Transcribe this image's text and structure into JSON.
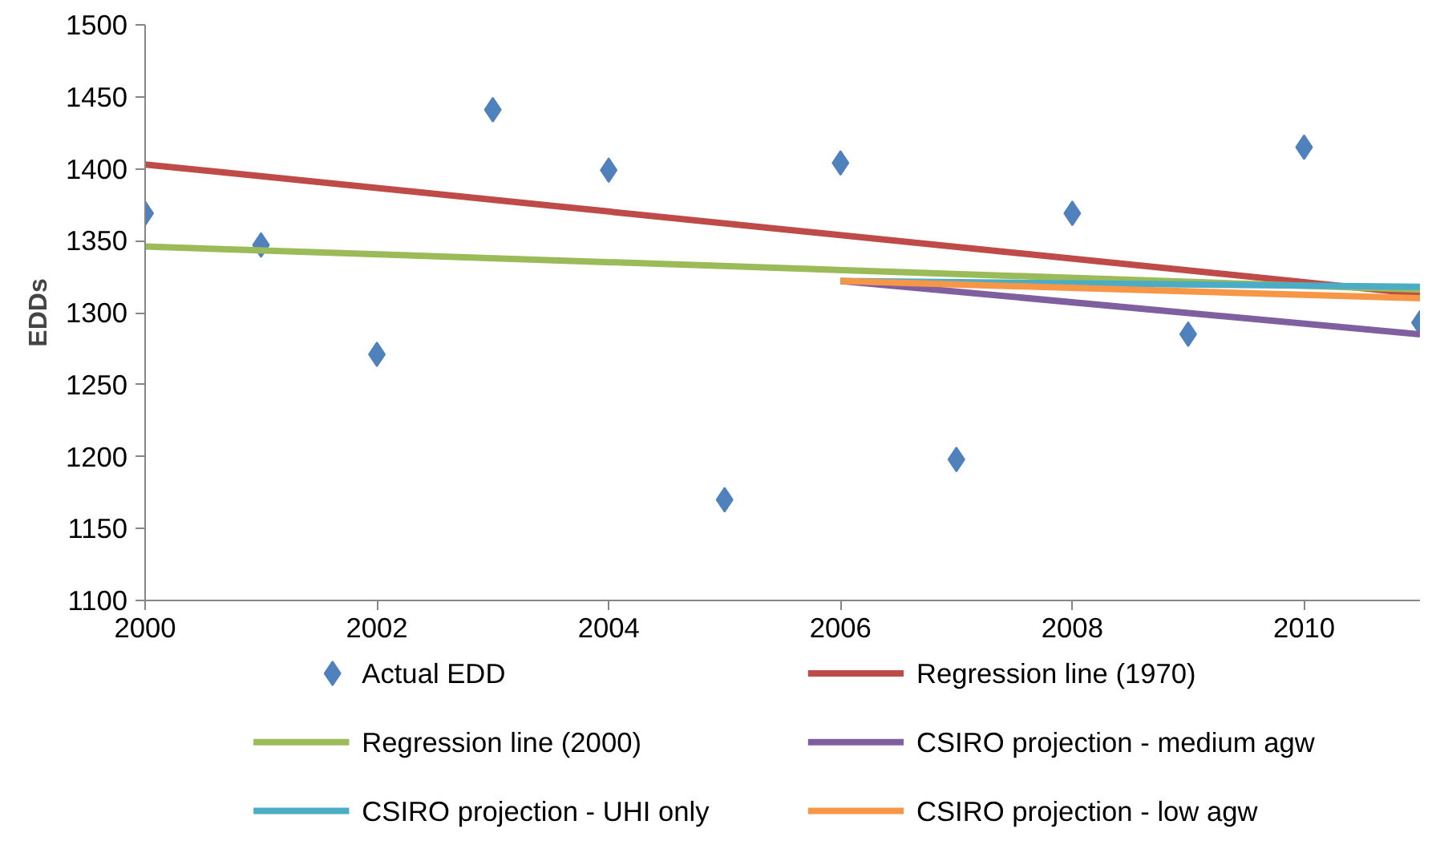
{
  "chart_data": {
    "type": "scatter",
    "ylabel": "EDDs",
    "xlim": [
      2000,
      2011
    ],
    "xticks": [
      2000,
      2002,
      2004,
      2006,
      2008,
      2010
    ],
    "ylim": [
      1100,
      1500
    ],
    "yticks": [
      1100,
      1150,
      1200,
      1250,
      1300,
      1350,
      1400,
      1450,
      1500
    ],
    "grid": false,
    "legend": "bottom",
    "series": [
      {
        "name": "Actual EDD",
        "marker": "diamond",
        "color": "#4f81bd",
        "x": [
          2000,
          2001,
          2002,
          2003,
          2004,
          2005,
          2006,
          2007,
          2008,
          2009,
          2010,
          2011
        ],
        "values": [
          1369,
          1347,
          1271,
          1441,
          1399,
          1170,
          1404,
          1198,
          1369,
          1285,
          1415,
          1293
        ]
      },
      {
        "name": "Regression line (1970)",
        "type": "line",
        "color": "#be4b48",
        "x": [
          2000,
          2011
        ],
        "values": [
          1403,
          1313
        ]
      },
      {
        "name": "Regression line (2000)",
        "type": "line",
        "color": "#9bbb59",
        "x": [
          2000,
          2011
        ],
        "values": [
          1346,
          1316
        ]
      },
      {
        "name": "CSIRO projection - medium agw",
        "type": "line",
        "color": "#7f5f9f",
        "x": [
          2006,
          2011
        ],
        "values": [
          1322,
          1285
        ]
      },
      {
        "name": "CSIRO projection - UHI only",
        "type": "line",
        "color": "#4bacc6",
        "x": [
          2006,
          2011
        ],
        "values": [
          1322,
          1318
        ]
      },
      {
        "name": "CSIRO projection - low agw",
        "type": "line",
        "color": "#f79646",
        "x": [
          2006,
          2011
        ],
        "values": [
          1322,
          1310
        ]
      }
    ]
  }
}
